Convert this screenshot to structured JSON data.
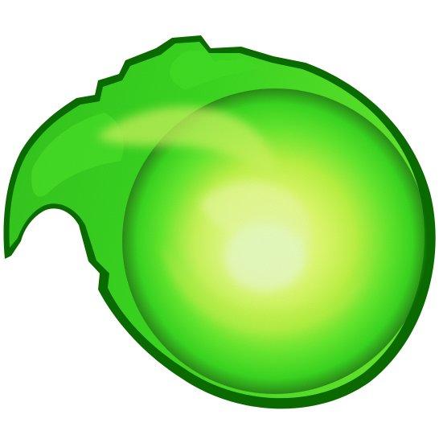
{
  "image": {
    "subject": "green-fireball",
    "background_color": "#ffffff",
    "colors": {
      "outer_edge": "#0a6a00",
      "flame_green": "#1ecb0a",
      "mid_green": "#55e21c",
      "inner_yellow_green": "#c8f03a",
      "core_yellow": "#f5fa6a",
      "hot_center": "#fffcc8"
    }
  }
}
